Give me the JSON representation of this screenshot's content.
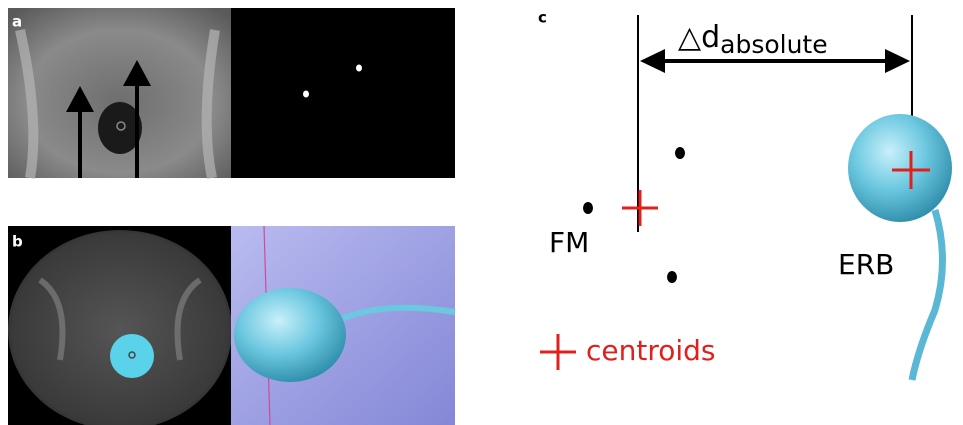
{
  "panels": {
    "a": {
      "label": "a"
    },
    "b": {
      "label": "b"
    },
    "c": {
      "label": "c",
      "delta_symbol": "△d",
      "delta_subscript": "absolute",
      "fm_label": "FM",
      "erb_label": "ERB",
      "legend_label": "centroids"
    }
  }
}
